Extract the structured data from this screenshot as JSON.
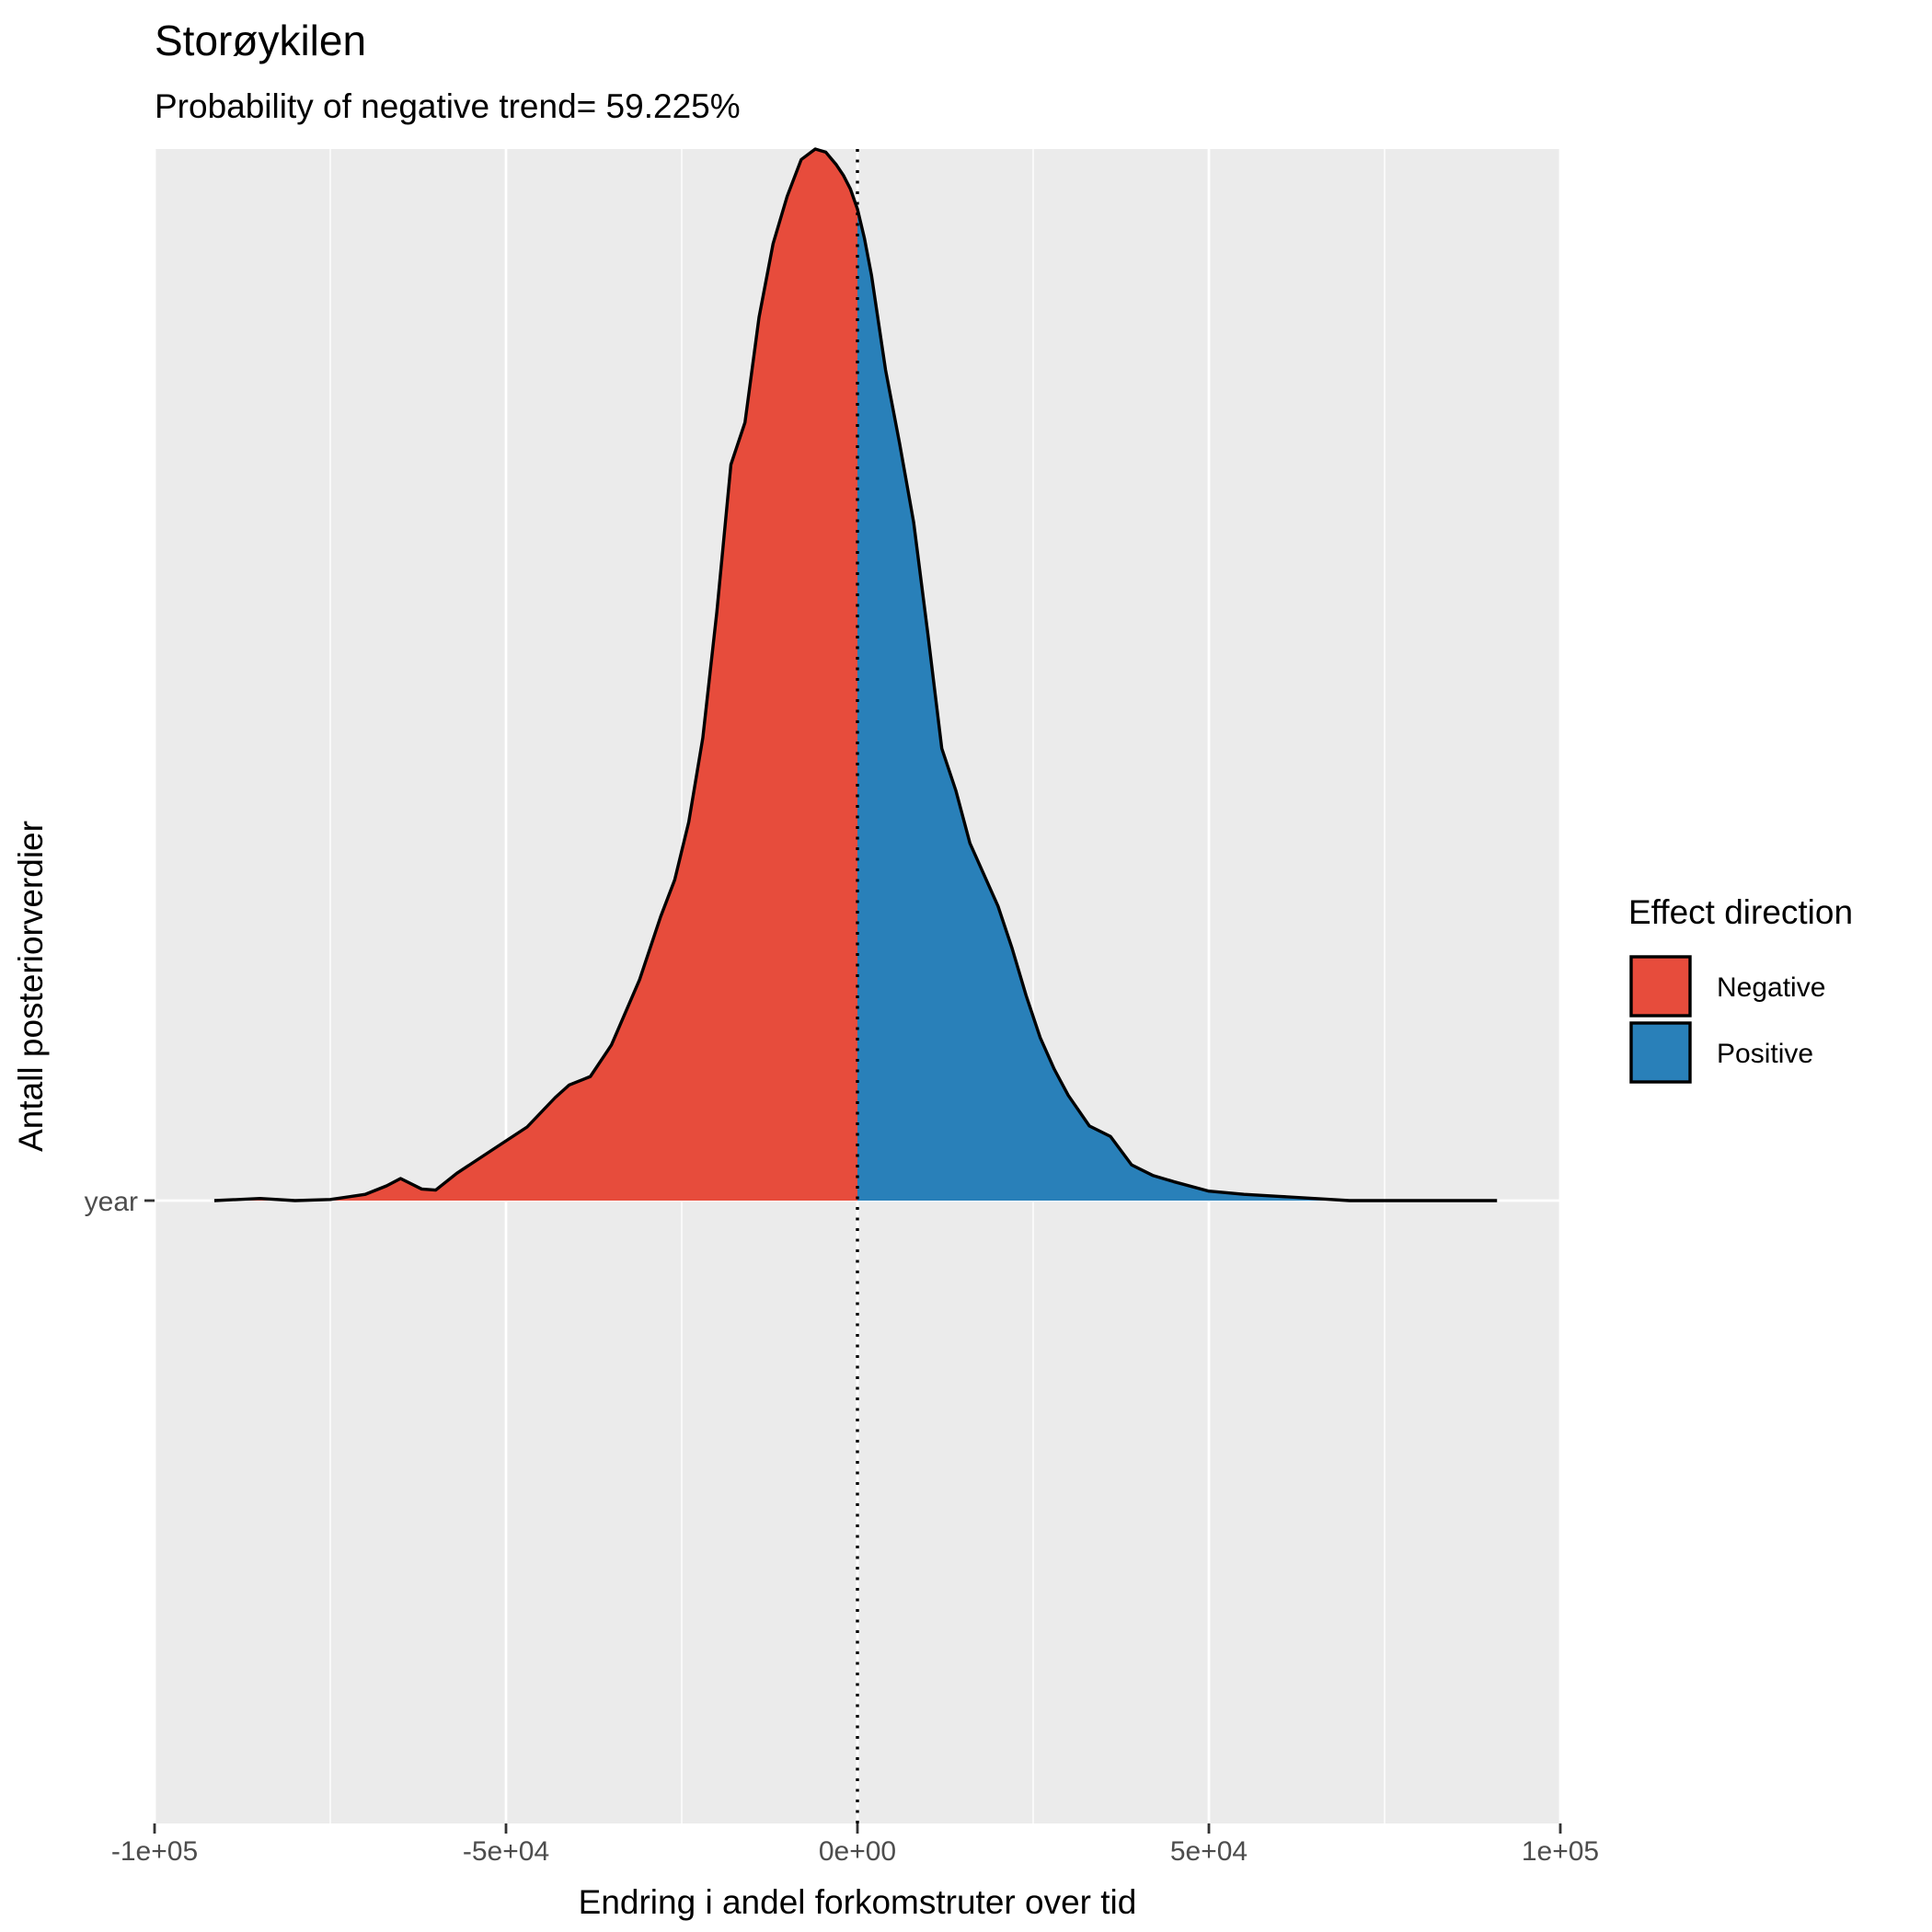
{
  "chart_data": {
    "type": "density",
    "title": "Storøykilen",
    "subtitle": "Probability of negative trend= 59.225%",
    "xlabel": "Endring i andel forkomstruter over tid",
    "ylabel": "Antall posteriorverdier",
    "xlim": [
      -100000,
      100000
    ],
    "x_ticks": [
      -100000,
      -50000,
      0,
      50000,
      100000
    ],
    "x_tick_labels": [
      "-1e+05",
      "-5e+04",
      "0e+00",
      "5e+04",
      "1e+05"
    ],
    "y_categories": [
      "year"
    ],
    "reference_line": {
      "x": 0,
      "style": "dotted"
    },
    "grid": true,
    "legend": {
      "title": "Effect direction",
      "placement": "right",
      "entries": [
        {
          "label": "Negative",
          "color": "#E74C3C"
        },
        {
          "label": "Positive",
          "color": "#2980B9"
        }
      ]
    },
    "density_curve": {
      "x": [
        -91500,
        -85000,
        -80000,
        -75000,
        -70000,
        -67000,
        -65000,
        -62000,
        -60000,
        -57000,
        -52000,
        -47000,
        -43000,
        -41000,
        -38000,
        -35000,
        -31000,
        -28000,
        -26000,
        -24000,
        -22000,
        -20000,
        -18000,
        -16000,
        -14000,
        -12000,
        -10000,
        -8000,
        -6000,
        -4500,
        -3000,
        -2000,
        -1000,
        0,
        1000,
        2000,
        4000,
        6000,
        8000,
        10000,
        12000,
        14000,
        16000,
        18000,
        20000,
        22000,
        24000,
        26000,
        28000,
        30000,
        33000,
        36000,
        39000,
        42000,
        45000,
        50000,
        55000,
        60000,
        65000,
        70000,
        75000,
        80000,
        85000,
        91000
      ],
      "y": [
        0.0,
        0.002,
        0.0,
        0.001,
        0.006,
        0.014,
        0.021,
        0.011,
        0.01,
        0.026,
        0.048,
        0.07,
        0.098,
        0.11,
        0.118,
        0.148,
        0.21,
        0.27,
        0.305,
        0.36,
        0.44,
        0.56,
        0.7,
        0.74,
        0.84,
        0.91,
        0.955,
        0.99,
        1.0,
        0.997,
        0.985,
        0.975,
        0.962,
        0.943,
        0.915,
        0.88,
        0.79,
        0.72,
        0.645,
        0.54,
        0.43,
        0.39,
        0.34,
        0.31,
        0.28,
        0.24,
        0.195,
        0.155,
        0.125,
        0.1,
        0.071,
        0.061,
        0.034,
        0.024,
        0.018,
        0.009,
        0.006,
        0.004,
        0.002,
        0.0,
        0.0,
        0.0,
        0.0,
        0.0
      ]
    }
  }
}
